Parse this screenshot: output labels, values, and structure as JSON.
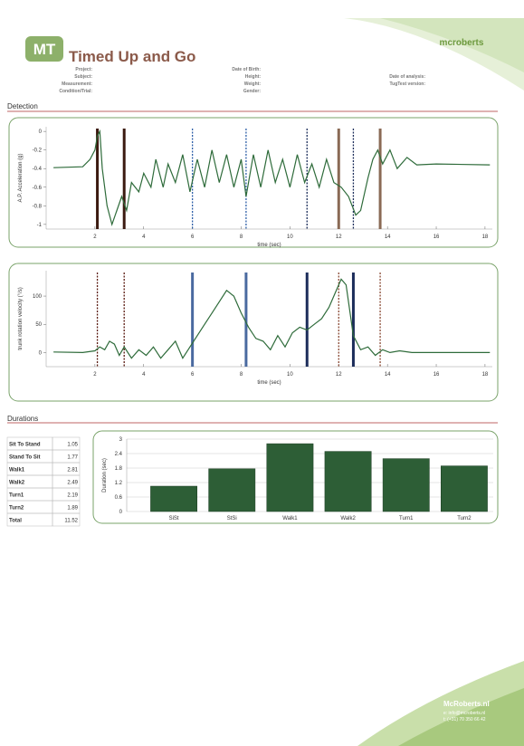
{
  "header": {
    "logo": "MT",
    "title": "Timed Up and Go",
    "brand": "mcroberts",
    "fields": [
      [
        "Project:",
        "Subject:",
        "Measurement:",
        "Condition/Trial:"
      ],
      [
        "Date of Birth:",
        "Height:",
        "Weight:",
        "Gender:"
      ],
      [
        "Date of analysis:",
        "TugTest version:"
      ]
    ]
  },
  "detection": {
    "heading": "Detection"
  },
  "durations": {
    "heading": "Durations",
    "table": {
      "rows": [
        [
          "Sit To Stand",
          "1.05"
        ],
        [
          "Stand To Sit",
          "1.77"
        ],
        [
          "Walk1",
          "2.81"
        ],
        [
          "Walk2",
          "2.49"
        ],
        [
          "Turn1",
          "2.19"
        ],
        [
          "Turn2",
          "1.89"
        ],
        [
          "Total",
          "11.52"
        ]
      ]
    }
  },
  "chart_data": [
    {
      "type": "line",
      "ylabel": "A.P. Acceleration (g)",
      "xlabel": "time (sec)",
      "color": "#2e6b3a",
      "x": [
        0.3,
        1.5,
        1.8,
        2.0,
        2.1,
        2.2,
        2.3,
        2.5,
        2.7,
        2.9,
        3.1,
        3.3,
        3.5,
        3.8,
        4.0,
        4.3,
        4.5,
        4.8,
        5.0,
        5.3,
        5.6,
        5.9,
        6.2,
        6.5,
        6.8,
        7.1,
        7.4,
        7.7,
        8.0,
        8.2,
        8.5,
        8.8,
        9.1,
        9.4,
        9.7,
        10.0,
        10.3,
        10.6,
        10.9,
        11.2,
        11.5,
        11.8,
        12.1,
        12.4,
        12.7,
        12.9,
        13.2,
        13.4,
        13.6,
        13.8,
        14.1,
        14.4,
        14.8,
        15.2,
        16.0,
        18.2
      ],
      "values": [
        -0.39,
        -0.38,
        -0.3,
        -0.2,
        -0.05,
        0,
        -0.4,
        -0.8,
        -1.0,
        -0.85,
        -0.7,
        -0.85,
        -0.55,
        -0.65,
        -0.45,
        -0.6,
        -0.3,
        -0.6,
        -0.35,
        -0.55,
        -0.25,
        -0.65,
        -0.3,
        -0.6,
        -0.2,
        -0.55,
        -0.25,
        -0.6,
        -0.3,
        -0.7,
        -0.25,
        -0.6,
        -0.2,
        -0.55,
        -0.3,
        -0.6,
        -0.25,
        -0.55,
        -0.35,
        -0.6,
        -0.3,
        -0.55,
        -0.6,
        -0.7,
        -0.9,
        -0.85,
        -0.5,
        -0.3,
        -0.2,
        -0.35,
        -0.2,
        -0.4,
        -0.28,
        -0.36,
        -0.35,
        -0.36
      ],
      "events": [
        {
          "x": 2.1,
          "color": "#3b1a10",
          "style": "solid"
        },
        {
          "x": 3.2,
          "color": "#3b1a10",
          "style": "solid"
        },
        {
          "x": 6.0,
          "color": "#2e5fa8",
          "style": "dashed"
        },
        {
          "x": 8.2,
          "color": "#2e5fa8",
          "style": "dashed"
        },
        {
          "x": 10.7,
          "color": "#1c2d5a",
          "style": "dashed"
        },
        {
          "x": 12.0,
          "color": "#8a6a55",
          "style": "solid"
        },
        {
          "x": 12.6,
          "color": "#1c2d5a",
          "style": "dashed"
        },
        {
          "x": 13.7,
          "color": "#8a6a55",
          "style": "solid"
        }
      ],
      "xlim": [
        0,
        18.3
      ],
      "xticks": [
        2,
        4,
        6,
        8,
        10,
        12,
        14,
        16,
        18
      ],
      "ylim": [
        -1.05,
        0.05
      ],
      "yticks": [
        0,
        -0.2,
        -0.4,
        -0.6,
        -0.8,
        -1
      ]
    },
    {
      "type": "line",
      "ylabel": "trunk rotation velocity (°/s)",
      "xlabel": "time (sec)",
      "color": "#2e6b3a",
      "x": [
        0.3,
        1.5,
        2.0,
        2.2,
        2.4,
        2.6,
        2.8,
        3.0,
        3.2,
        3.5,
        3.8,
        4.1,
        4.4,
        4.7,
        5.0,
        5.3,
        5.6,
        5.9,
        6.2,
        6.5,
        6.8,
        7.1,
        7.4,
        7.7,
        8.0,
        8.3,
        8.6,
        8.9,
        9.2,
        9.5,
        9.8,
        10.1,
        10.4,
        10.7,
        11.0,
        11.3,
        11.6,
        11.9,
        12.1,
        12.3,
        12.6,
        12.9,
        13.2,
        13.5,
        13.8,
        14.1,
        14.5,
        15.0,
        18.2
      ],
      "values": [
        1,
        0,
        3,
        10,
        5,
        20,
        15,
        -5,
        10,
        -10,
        5,
        -5,
        10,
        -10,
        5,
        20,
        -10,
        10,
        30,
        50,
        70,
        90,
        110,
        100,
        70,
        45,
        25,
        20,
        5,
        30,
        10,
        35,
        45,
        40,
        50,
        60,
        80,
        110,
        130,
        120,
        30,
        5,
        10,
        -5,
        5,
        0,
        3,
        0,
        0
      ],
      "events": [
        {
          "x": 2.1,
          "color": "#5a1a10",
          "style": "dashed"
        },
        {
          "x": 3.2,
          "color": "#5a1a10",
          "style": "dashed"
        },
        {
          "x": 6.0,
          "color": "#4a6aa0",
          "style": "solid"
        },
        {
          "x": 8.2,
          "color": "#4a6aa0",
          "style": "solid"
        },
        {
          "x": 10.7,
          "color": "#1c2d5a",
          "style": "solid"
        },
        {
          "x": 12.0,
          "color": "#8a4a35",
          "style": "dashed"
        },
        {
          "x": 12.6,
          "color": "#1c2d5a",
          "style": "solid"
        },
        {
          "x": 13.7,
          "color": "#8a4a35",
          "style": "dashed"
        }
      ],
      "xlim": [
        0,
        18.3
      ],
      "xticks": [
        2,
        4,
        6,
        8,
        10,
        12,
        14,
        16,
        18
      ],
      "ylim": [
        -25,
        145
      ],
      "yticks": [
        0,
        50,
        100
      ]
    },
    {
      "type": "bar",
      "ylabel": "Duration (sec)",
      "color": "#2d5e36",
      "categories": [
        "SiSt",
        "StSi",
        "Walk1",
        "Walk2",
        "Turn1",
        "Turn2"
      ],
      "values": [
        1.05,
        1.77,
        2.81,
        2.49,
        2.19,
        1.89
      ],
      "ylim": [
        0,
        3
      ],
      "yticks": [
        0,
        0.6,
        1.2,
        1.8,
        2.4,
        3
      ]
    }
  ],
  "footer": {
    "site": "McRoberts.nl",
    "email": "e: info@mcroberts.nl",
    "phone": "t: (+31) 70 350 66 42"
  }
}
